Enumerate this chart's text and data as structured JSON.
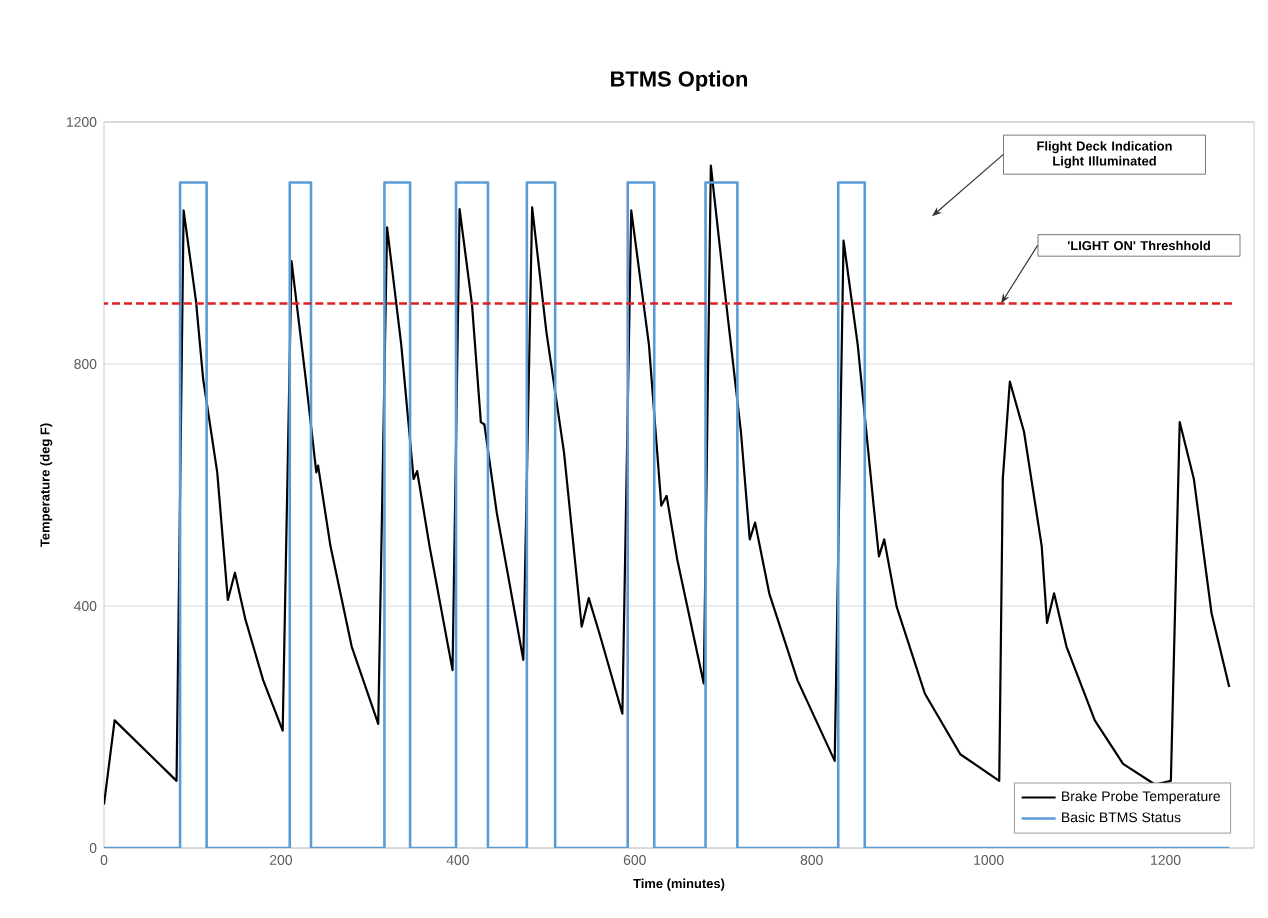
{
  "chart_data": {
    "type": "line",
    "title": "BTMS Option",
    "xlabel": "Time (minutes)",
    "ylabel": "Temperature (deg F)",
    "xlim": [
      0,
      1300
    ],
    "ylim": [
      0,
      1200
    ],
    "xticks": [
      0,
      200,
      400,
      600,
      800,
      1000,
      1200
    ],
    "yticks": [
      0,
      400,
      800,
      1200
    ],
    "grid": "y",
    "legend": "bottom right",
    "marker": "none",
    "series": [
      {
        "name": "Brake Probe Temperature",
        "color": "#000000",
        "x": [
          0,
          12,
          82,
          90,
          104,
          112,
          128,
          140,
          148,
          160,
          180,
          202,
          212,
          228,
          240,
          242,
          256,
          280,
          310,
          320,
          336,
          350,
          354,
          368,
          394,
          402,
          416,
          426,
          430,
          444,
          474,
          484,
          500,
          520,
          540,
          548,
          560,
          586,
          596,
          616,
          630,
          636,
          648,
          678,
          686,
          700,
          720,
          730,
          736,
          752,
          784,
          826,
          836,
          852,
          870,
          876,
          882,
          896,
          928,
          968,
          1012,
          1016,
          1024,
          1040,
          1060,
          1066,
          1074,
          1088,
          1120,
          1152,
          1188,
          1206,
          1216,
          1232,
          1252,
          1272
        ],
        "values": [
          72,
          211,
          111,
          1054,
          904,
          776,
          621,
          410,
          455,
          377,
          277,
          194,
          970,
          776,
          621,
          632,
          499,
          333,
          205,
          1026,
          832,
          610,
          623,
          499,
          294,
          1056,
          898,
          704,
          700,
          554,
          311,
          1059,
          854,
          654,
          366,
          413,
          355,
          222,
          1054,
          832,
          566,
          582,
          477,
          272,
          1128,
          943,
          688,
          510,
          538,
          421,
          277,
          144,
          1004,
          832,
          566,
          482,
          510,
          399,
          255,
          155,
          111,
          610,
          771,
          688,
          499,
          372,
          421,
          333,
          211,
          139,
          105,
          111,
          704,
          610,
          388,
          266
        ]
      },
      {
        "name": "Basic BTMS Status",
        "color": "#5b9bd5",
        "x": [
          0,
          86,
          86,
          116,
          116,
          210,
          210,
          234,
          234,
          317,
          317,
          346,
          346,
          398,
          398,
          434,
          434,
          478,
          478,
          510,
          510,
          592,
          592,
          622,
          622,
          680,
          680,
          716,
          716,
          830,
          830,
          860,
          860,
          1272
        ],
        "values": [
          0,
          0,
          1100,
          1100,
          0,
          0,
          1100,
          1100,
          0,
          0,
          1100,
          1100,
          0,
          0,
          1100,
          1100,
          0,
          0,
          1100,
          1100,
          0,
          0,
          1100,
          1100,
          0,
          0,
          1100,
          1100,
          0,
          0,
          1100,
          1100,
          0,
          0
        ]
      }
    ],
    "ref_lines": [
      {
        "axis": "y",
        "value": 900,
        "color": "#e02020",
        "line_style": "dashed"
      }
    ],
    "annotations": [
      "Flight Deck Indication Light Illuminated",
      "'LIGHT ON' Threshhold"
    ]
  }
}
